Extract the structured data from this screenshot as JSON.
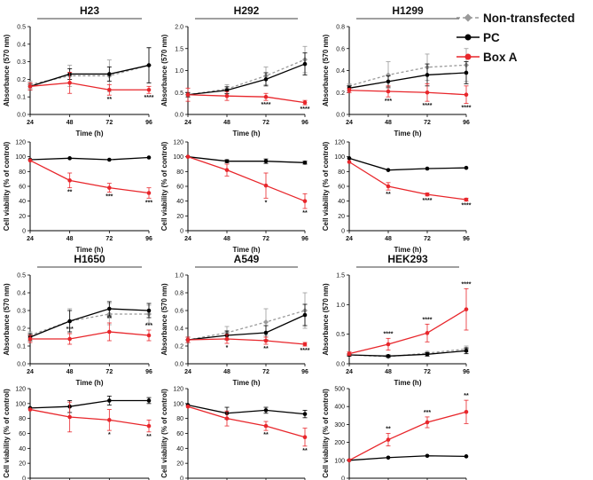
{
  "legend": [
    {
      "label": "Non-transfected",
      "color": "#9a9a9a",
      "dash": true,
      "marker": "diamond"
    },
    {
      "label": "PC",
      "color": "#000000",
      "dash": false,
      "marker": "circle"
    },
    {
      "label": "Box A",
      "color": "#e8262b",
      "dash": false,
      "marker": "circle"
    }
  ],
  "chart_data": [
    {
      "type": "line",
      "panel": "H23-absorbance",
      "title": "H23",
      "xlabel": "Time (h)",
      "ylabel": "Absorbance (570 nm)",
      "x": [
        24,
        48,
        72,
        96
      ],
      "xticks": [
        "24",
        "48",
        "72",
        "96"
      ],
      "ylim": [
        0,
        0.5
      ],
      "yticks": [
        "0.0",
        "0.1",
        "0.2",
        "0.3",
        "0.4",
        "0.5"
      ],
      "series": [
        {
          "name": "Non-transfected",
          "values": [
            0.17,
            0.22,
            0.22,
            0.28
          ],
          "err": [
            0.02,
            0.06,
            0.09,
            0.1
          ]
        },
        {
          "name": "PC",
          "values": [
            0.16,
            0.23,
            0.23,
            0.28
          ],
          "err": [
            0.02,
            0.03,
            0.04,
            0.1
          ]
        },
        {
          "name": "Box A",
          "values": [
            0.16,
            0.18,
            0.14,
            0.14
          ],
          "err": [
            0.02,
            0.06,
            0.03,
            0.02
          ]
        }
      ],
      "annotations": [
        {
          "x": 72,
          "text": "**"
        },
        {
          "x": 96,
          "text": "****"
        }
      ]
    },
    {
      "type": "line",
      "panel": "H292-absorbance",
      "title": "H292",
      "xlabel": "Time (h)",
      "ylabel": "Absorbance (570 nm)",
      "x": [
        24,
        48,
        72,
        96
      ],
      "xticks": [
        "24",
        "48",
        "72",
        "96"
      ],
      "ylim": [
        0,
        2.0
      ],
      "yticks": [
        "0.0",
        "0.5",
        "1.0",
        "1.5",
        "2.0"
      ],
      "series": [
        {
          "name": "Non-transfected",
          "values": [
            0.45,
            0.58,
            0.88,
            1.25
          ],
          "err": [
            0.05,
            0.1,
            0.2,
            0.3
          ]
        },
        {
          "name": "PC",
          "values": [
            0.45,
            0.55,
            0.8,
            1.15
          ],
          "err": [
            0.05,
            0.08,
            0.15,
            0.25
          ]
        },
        {
          "name": "Box A",
          "values": [
            0.45,
            0.42,
            0.4,
            0.27
          ],
          "err": [
            0.15,
            0.1,
            0.08,
            0.05
          ]
        }
      ],
      "annotations": [
        {
          "x": 72,
          "text": "****"
        },
        {
          "x": 96,
          "text": "****"
        }
      ]
    },
    {
      "type": "line",
      "panel": "H1299-absorbance",
      "title": "H1299",
      "xlabel": "Time (h)",
      "ylabel": "Absorbance (570 nm)",
      "x": [
        24,
        48,
        72,
        96
      ],
      "xticks": [
        "24",
        "48",
        "72",
        "96"
      ],
      "ylim": [
        0,
        0.8
      ],
      "yticks": [
        "0.0",
        "0.2",
        "0.4",
        "0.6",
        "0.8"
      ],
      "series": [
        {
          "name": "Non-transfected",
          "values": [
            0.26,
            0.36,
            0.43,
            0.45
          ],
          "err": [
            0.02,
            0.12,
            0.12,
            0.15
          ]
        },
        {
          "name": "PC",
          "values": [
            0.24,
            0.3,
            0.36,
            0.38
          ],
          "err": [
            0.02,
            0.05,
            0.1,
            0.1
          ]
        },
        {
          "name": "Box A",
          "values": [
            0.22,
            0.21,
            0.2,
            0.18
          ],
          "err": [
            0.02,
            0.05,
            0.08,
            0.08
          ]
        }
      ],
      "annotations": [
        {
          "x": 48,
          "text": "***"
        },
        {
          "x": 72,
          "text": "****"
        },
        {
          "x": 96,
          "text": "****"
        }
      ]
    },
    {
      "type": "line",
      "panel": "H23-viability",
      "xlabel": "Time (h)",
      "ylabel": "Cell viability (% of control)",
      "x": [
        24,
        48,
        72,
        96
      ],
      "xticks": [
        "24",
        "48",
        "72",
        "96"
      ],
      "ylim": [
        0,
        120
      ],
      "yticks": [
        "0",
        "20",
        "40",
        "60",
        "80",
        "100",
        "120"
      ],
      "series": [
        {
          "name": "PC",
          "values": [
            96,
            98,
            96,
            99
          ],
          "err": [
            0,
            0,
            0,
            0
          ]
        },
        {
          "name": "Box A",
          "values": [
            95,
            68,
            58,
            51
          ],
          "err": [
            0,
            10,
            6,
            7
          ]
        }
      ],
      "annotations": [
        {
          "x": 48,
          "text": "**"
        },
        {
          "x": 72,
          "text": "***"
        },
        {
          "x": 96,
          "text": "***"
        }
      ]
    },
    {
      "type": "line",
      "panel": "H292-viability",
      "xlabel": "Time (h)",
      "ylabel": "Cell viability (% of control)",
      "x": [
        24,
        48,
        72,
        96
      ],
      "xticks": [
        "24",
        "48",
        "72",
        "96"
      ],
      "ylim": [
        0,
        120
      ],
      "yticks": [
        "0",
        "20",
        "40",
        "60",
        "80",
        "100",
        "120"
      ],
      "series": [
        {
          "name": "PC",
          "values": [
            100,
            94,
            94,
            92
          ],
          "err": [
            0,
            2,
            3,
            2
          ]
        },
        {
          "name": "Box A",
          "values": [
            100,
            82,
            61,
            40
          ],
          "err": [
            0,
            8,
            17,
            10
          ]
        }
      ],
      "annotations": [
        {
          "x": 72,
          "text": "*"
        },
        {
          "x": 96,
          "text": "**"
        }
      ]
    },
    {
      "type": "line",
      "panel": "H1299-viability",
      "xlabel": "Time (h)",
      "ylabel": "Cell viability (% of control)",
      "x": [
        24,
        48,
        72,
        96
      ],
      "xticks": [
        "24",
        "48",
        "72",
        "96"
      ],
      "ylim": [
        0,
        120
      ],
      "yticks": [
        "0",
        "20",
        "40",
        "60",
        "80",
        "100",
        "120"
      ],
      "series": [
        {
          "name": "PC",
          "values": [
            98,
            82,
            84,
            85
          ],
          "err": [
            0,
            0,
            0,
            0
          ]
        },
        {
          "name": "Box A",
          "values": [
            93,
            60,
            49,
            42
          ],
          "err": [
            0,
            5,
            2,
            2
          ]
        }
      ],
      "annotations": [
        {
          "x": 48,
          "text": "**"
        },
        {
          "x": 72,
          "text": "****"
        },
        {
          "x": 96,
          "text": "****"
        }
      ]
    },
    {
      "type": "line",
      "panel": "H1650-absorbance",
      "title": "H1650",
      "xlabel": "Time (h)",
      "ylabel": "Absorbance (570 nm)",
      "x": [
        24,
        48,
        72,
        96
      ],
      "xticks": [
        "24",
        "48",
        "72",
        "96"
      ],
      "ylim": [
        0,
        0.5
      ],
      "yticks": [
        "0.0",
        "0.1",
        "0.2",
        "0.3",
        "0.4",
        "0.5"
      ],
      "series": [
        {
          "name": "Non-transfected",
          "values": [
            0.16,
            0.24,
            0.28,
            0.28
          ],
          "err": [
            0.02,
            0.07,
            0.06,
            0.05
          ]
        },
        {
          "name": "PC",
          "values": [
            0.15,
            0.24,
            0.31,
            0.3
          ],
          "err": [
            0.02,
            0.06,
            0.04,
            0.04
          ]
        },
        {
          "name": "Box A",
          "values": [
            0.14,
            0.14,
            0.18,
            0.16
          ],
          "err": [
            0.02,
            0.03,
            0.05,
            0.03
          ]
        }
      ],
      "annotations": [
        {
          "x": 48,
          "text": "***"
        },
        {
          "x": 72,
          "text": "**"
        },
        {
          "x": 96,
          "text": "***"
        }
      ]
    },
    {
      "type": "line",
      "panel": "A549-absorbance",
      "title": "A549",
      "xlabel": "Time (h)",
      "ylabel": "Absorbance (570 nm)",
      "x": [
        24,
        48,
        72,
        96
      ],
      "xticks": [
        "24",
        "48",
        "72",
        "96"
      ],
      "ylim": [
        0,
        1.0
      ],
      "yticks": [
        "0.0",
        "0.2",
        "0.4",
        "0.6",
        "0.8",
        "1.0"
      ],
      "series": [
        {
          "name": "Non-transfected",
          "values": [
            0.27,
            0.35,
            0.47,
            0.6
          ],
          "err": [
            0.03,
            0.07,
            0.15,
            0.2
          ]
        },
        {
          "name": "PC",
          "values": [
            0.27,
            0.32,
            0.35,
            0.55
          ],
          "err": [
            0.03,
            0.05,
            0.08,
            0.12
          ]
        },
        {
          "name": "Box A",
          "values": [
            0.27,
            0.28,
            0.26,
            0.22
          ],
          "err": [
            0.03,
            0.05,
            0.04,
            0.02
          ]
        }
      ],
      "annotations": [
        {
          "x": 48,
          "text": "*"
        },
        {
          "x": 72,
          "text": "**"
        },
        {
          "x": 96,
          "text": "****"
        }
      ]
    },
    {
      "type": "line",
      "panel": "HEK293-absorbance",
      "title": "HEK293",
      "xlabel": "Time (h)",
      "ylabel": "Absorbance (570 nm)",
      "x": [
        24,
        48,
        72,
        96
      ],
      "xticks": [
        "24",
        "48",
        "72",
        "96"
      ],
      "ylim": [
        0,
        1.5
      ],
      "yticks": [
        "0.0",
        "0.5",
        "1.0",
        "1.5"
      ],
      "series": [
        {
          "name": "Non-transfected",
          "values": [
            0.15,
            0.12,
            0.18,
            0.25
          ],
          "err": [
            0.02,
            0.02,
            0.03,
            0.05
          ]
        },
        {
          "name": "PC",
          "values": [
            0.15,
            0.13,
            0.16,
            0.22
          ],
          "err": [
            0.02,
            0.02,
            0.03,
            0.05
          ]
        },
        {
          "name": "Box A",
          "values": [
            0.17,
            0.33,
            0.52,
            0.92
          ],
          "err": [
            0.03,
            0.1,
            0.15,
            0.35
          ]
        }
      ],
      "annotations": [
        {
          "x": 48,
          "text": "****"
        },
        {
          "x": 72,
          "text": "****"
        },
        {
          "x": 96,
          "text": "****"
        }
      ]
    },
    {
      "type": "line",
      "panel": "H1650-viability",
      "xlabel": "Time (h)",
      "ylabel": "Cell viability (% of control)",
      "x": [
        24,
        48,
        72,
        96
      ],
      "xticks": [
        "24",
        "48",
        "72",
        "96"
      ],
      "ylim": [
        0,
        120
      ],
      "yticks": [
        "0",
        "20",
        "40",
        "60",
        "80",
        "100",
        "120"
      ],
      "series": [
        {
          "name": "PC",
          "values": [
            94,
            96,
            104,
            104
          ],
          "err": [
            0,
            8,
            6,
            4
          ]
        },
        {
          "name": "Box A",
          "values": [
            92,
            82,
            78,
            70
          ],
          "err": [
            0,
            20,
            14,
            8
          ]
        }
      ],
      "annotations": [
        {
          "x": 72,
          "text": "*"
        },
        {
          "x": 96,
          "text": "**"
        }
      ]
    },
    {
      "type": "line",
      "panel": "A549-viability",
      "xlabel": "Time (h)",
      "ylabel": "Cell viability (% of control)",
      "x": [
        24,
        48,
        72,
        96
      ],
      "xticks": [
        "24",
        "48",
        "72",
        "96"
      ],
      "ylim": [
        0,
        120
      ],
      "yticks": [
        "0",
        "20",
        "40",
        "60",
        "80",
        "100",
        "120"
      ],
      "series": [
        {
          "name": "PC",
          "values": [
            98,
            87,
            91,
            86
          ],
          "err": [
            0,
            8,
            4,
            5
          ]
        },
        {
          "name": "Box A",
          "values": [
            96,
            80,
            70,
            55
          ],
          "err": [
            0,
            10,
            6,
            12
          ]
        }
      ],
      "annotations": [
        {
          "x": 72,
          "text": "**"
        },
        {
          "x": 96,
          "text": "**"
        }
      ]
    },
    {
      "type": "line",
      "panel": "HEK293-viability",
      "xlabel": "Time (h)",
      "ylabel": "Cell viability (% of control)",
      "x": [
        24,
        48,
        72,
        96
      ],
      "xticks": [
        "24",
        "48",
        "72",
        "96"
      ],
      "ylim": [
        0,
        500
      ],
      "yticks": [
        "0",
        "100",
        "200",
        "300",
        "400",
        "500"
      ],
      "series": [
        {
          "name": "PC",
          "values": [
            100,
            115,
            125,
            122
          ],
          "err": [
            0,
            0,
            0,
            0
          ]
        },
        {
          "name": "Box A",
          "values": [
            100,
            215,
            312,
            370
          ],
          "err": [
            0,
            35,
            30,
            65
          ]
        }
      ],
      "annotations": [
        {
          "x": 48,
          "text": "**"
        },
        {
          "x": 72,
          "text": "***"
        },
        {
          "x": 96,
          "text": "**"
        }
      ]
    }
  ]
}
